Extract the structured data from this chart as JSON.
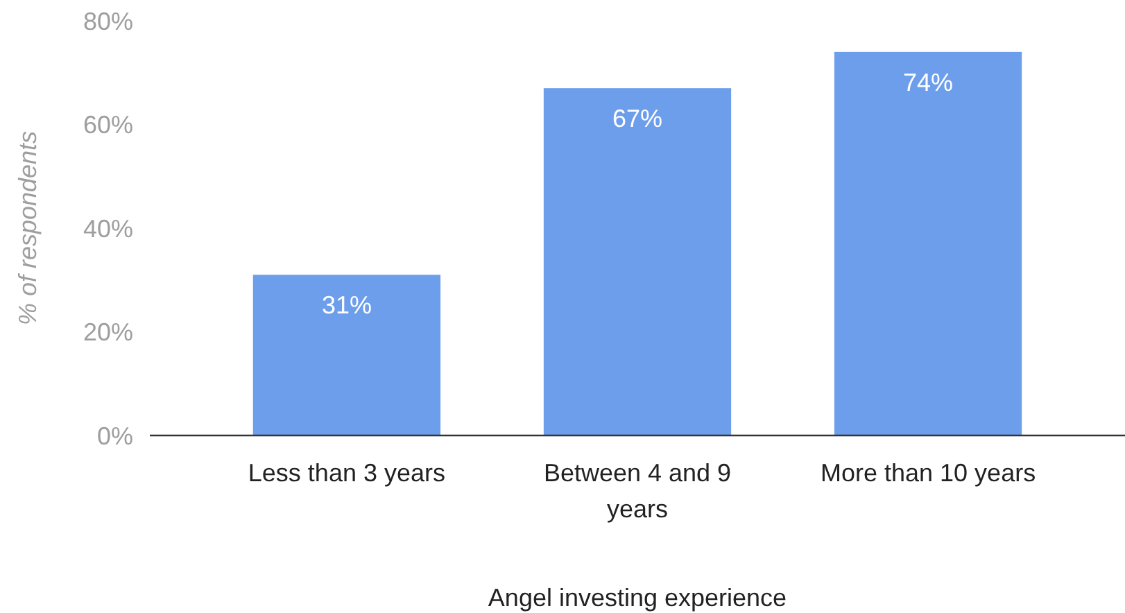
{
  "chart_data": {
    "type": "bar",
    "xlabel": "Angel investing experience",
    "ylabel": "% of respondents",
    "categories": [
      "Less than 3 years",
      "Between 4 and 9 years",
      "More than 10 years"
    ],
    "values": [
      31,
      67,
      74
    ],
    "color": "#6d9eeb",
    "value_labels": [
      "31%",
      "67%",
      "74%"
    ],
    "ylim": [
      0,
      80
    ],
    "yticks": [
      {
        "value": 0,
        "label": "0%"
      },
      {
        "value": 20,
        "label": "20%"
      },
      {
        "value": 40,
        "label": "40%"
      },
      {
        "value": 60,
        "label": "60%"
      },
      {
        "value": 80,
        "label": "80%"
      }
    ],
    "grid": false
  }
}
